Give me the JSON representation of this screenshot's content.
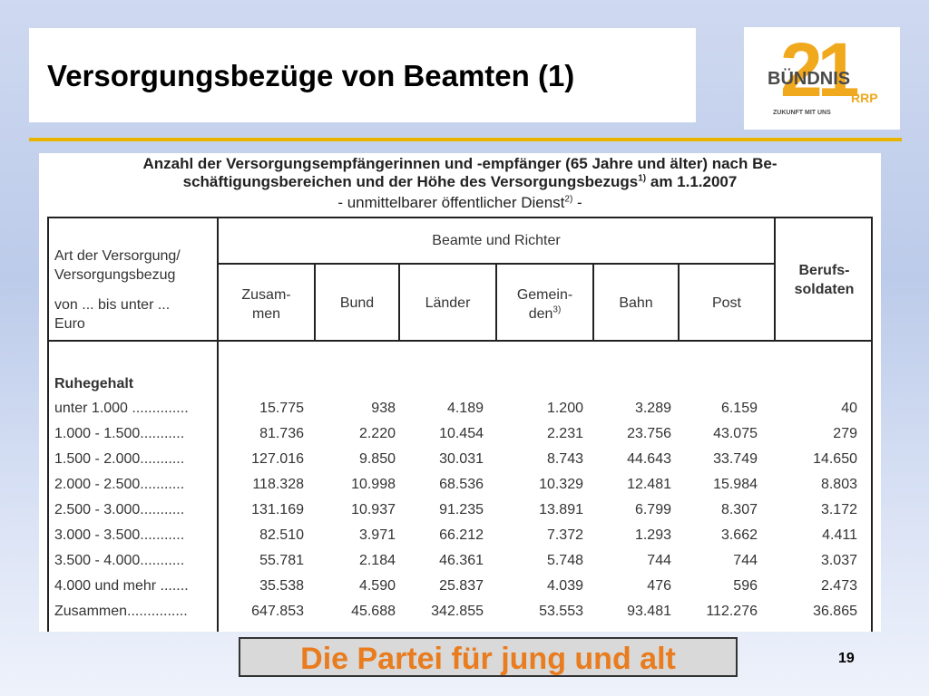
{
  "slide": {
    "title": "Versorgungsbezüge von Beamten (1)",
    "page_number": "19",
    "slogan": "Die Partei für jung und alt"
  },
  "logo": {
    "number": "21",
    "name": "BÜNDNIS",
    "suffix": "RRP",
    "tagline": "ZUKUNFT MIT UNS"
  },
  "document": {
    "heading_line1": "Anzahl der Versorgungsempfängerinnen und -empfänger (65 Jahre und älter) nach Be-",
    "heading_line2_a": "schäftigungsbereichen und der Höhe des Versorgungsbezugs",
    "heading_line2_sup": "1)",
    "heading_line2_b": " am 1.1.2007",
    "subheading_a": "- unmittelbarer öffentlicher Dienst",
    "subheading_sup": "2)",
    "subheading_b": " -"
  },
  "table": {
    "row_header_line1": "Art der Versorgung/",
    "row_header_line2": "Versorgungsbezug",
    "row_header_line3": "von ... bis unter ...",
    "row_header_line4": "Euro",
    "group_header": "Beamte und Richter",
    "col_zusammen_1": "Zusam-",
    "col_zusammen_2": "men",
    "col_bund": "Bund",
    "col_laender": "Länder",
    "col_gemeinden_1": "Gemein-",
    "col_gemeinden_2": "den",
    "col_gemeinden_sup": "3)",
    "col_bahn": "Bahn",
    "col_post": "Post",
    "col_beruf_1": "Berufs-",
    "col_beruf_2": "soldaten",
    "section": "Ruhegehalt",
    "rows": [
      {
        "label": "unter 1.000 ..............",
        "v": [
          "15.775",
          "938",
          "4.189",
          "1.200",
          "3.289",
          "6.159",
          "40"
        ]
      },
      {
        "label": "1.000  - 1.500...........",
        "v": [
          "81.736",
          "2.220",
          "10.454",
          "2.231",
          "23.756",
          "43.075",
          "279"
        ]
      },
      {
        "label": "1.500  - 2.000...........",
        "v": [
          "127.016",
          "9.850",
          "30.031",
          "8.743",
          "44.643",
          "33.749",
          "14.650"
        ]
      },
      {
        "label": "2.000  - 2.500...........",
        "v": [
          "118.328",
          "10.998",
          "68.536",
          "10.329",
          "12.481",
          "15.984",
          "8.803"
        ]
      },
      {
        "label": "2.500  - 3.000...........",
        "v": [
          "131.169",
          "10.937",
          "91.235",
          "13.891",
          "6.799",
          "8.307",
          "3.172"
        ]
      },
      {
        "label": "3.000  - 3.500...........",
        "v": [
          "82.510",
          "3.971",
          "66.212",
          "7.372",
          "1.293",
          "3.662",
          "4.411"
        ]
      },
      {
        "label": "3.500  - 4.000...........",
        "v": [
          "55.781",
          "2.184",
          "46.361",
          "5.748",
          "744",
          "744",
          "3.037"
        ]
      },
      {
        "label": "4.000 und mehr .......",
        "v": [
          "35.538",
          "4.590",
          "25.837",
          "4.039",
          "476",
          "596",
          "2.473"
        ]
      },
      {
        "label": "Zusammen...............",
        "v": [
          "647.853",
          "45.688",
          "342.855",
          "53.553",
          "93.481",
          "112.276",
          "36.865"
        ]
      }
    ]
  }
}
